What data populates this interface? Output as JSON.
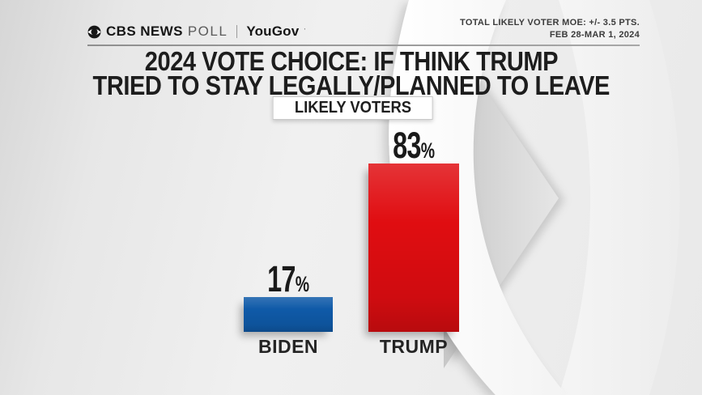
{
  "brand": {
    "cbs_news": "CBS NEWS",
    "poll": "POLL",
    "partner": "YouGov",
    "partner_mark": "’"
  },
  "header": {
    "moe_line1": "TOTAL LIKELY VOTER MOE: +/- 3.5 PTS.",
    "moe_line2": "FEB 28-MAR 1, 2024"
  },
  "title": {
    "line1": "2024 VOTE CHOICE: IF THINK TRUMP",
    "line2": "TRIED TO STAY LEGALLY/PLANNED TO LEAVE"
  },
  "badge": "LIKELY VOTERS",
  "chart_data": {
    "type": "bar",
    "title": "2024 VOTE CHOICE: IF THINK TRUMP TRIED TO STAY LEGALLY/PLANNED TO LEAVE",
    "subtitle": "LIKELY VOTERS",
    "categories": [
      "BIDEN",
      "TRUMP"
    ],
    "values": [
      17,
      83
    ],
    "value_labels": [
      "17",
      "83"
    ],
    "value_suffix": "%",
    "bar_colors": [
      "#0f5aa8",
      "#e00d11"
    ],
    "label_color": "#1c1c1c",
    "ylim": [
      0,
      100
    ],
    "grid": false,
    "legend": "none",
    "annotation": "TOTAL LIKELY VOTER MOE: +/- 3.5 PTS. FEB 28-MAR 1, 2024"
  }
}
